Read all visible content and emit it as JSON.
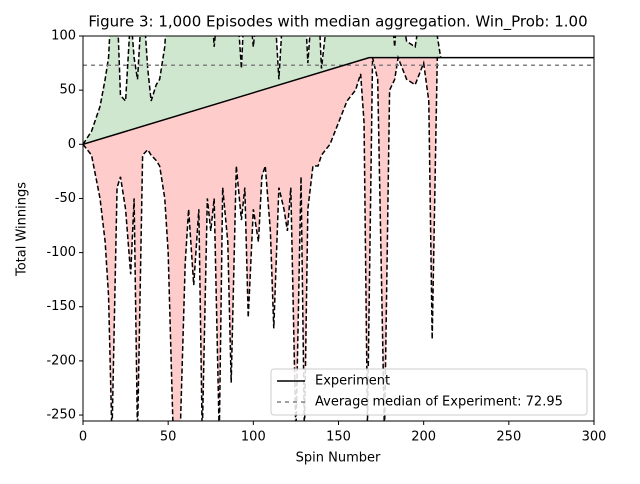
{
  "chart_data": {
    "type": "line",
    "title": "Figure 3: 1,000 Episodes with median aggregation. Win_Prob: 1.00",
    "xlabel": "Spin Number",
    "ylabel": "Total Winnings",
    "xlim": [
      0,
      300
    ],
    "ylim": [
      -255.5,
      100
    ],
    "xticks": [
      0,
      50,
      100,
      150,
      200,
      250,
      300
    ],
    "yticks": [
      100,
      50,
      0,
      -50,
      -100,
      -150,
      -200,
      -250
    ],
    "series": [
      {
        "name": "Experiment",
        "color": "#000000",
        "x": [
          0,
          168,
          300
        ],
        "values": [
          0,
          80,
          80
        ]
      }
    ],
    "bands": {
      "x": [
        0,
        5,
        10,
        13,
        15,
        17,
        20,
        22,
        25,
        28,
        30,
        32,
        35,
        38,
        40,
        43,
        45,
        48,
        50,
        53,
        57,
        60,
        62,
        65,
        68,
        70,
        73,
        75,
        77,
        80,
        82,
        85,
        87,
        90,
        93,
        95,
        97,
        100,
        103,
        105,
        107,
        110,
        112,
        115,
        118,
        120,
        122,
        125,
        128,
        130,
        132,
        135,
        138,
        140,
        145,
        150,
        155,
        160,
        163,
        165,
        167,
        170,
        173,
        177,
        180,
        183,
        185,
        190,
        195,
        200,
        203,
        205,
        208,
        210
      ],
      "upper": [
        0,
        12,
        35,
        60,
        80,
        140,
        130,
        45,
        40,
        120,
        80,
        60,
        140,
        70,
        40,
        55,
        60,
        90,
        140,
        140,
        140,
        140,
        140,
        140,
        100,
        140,
        140,
        140,
        90,
        140,
        140,
        140,
        140,
        140,
        70,
        140,
        140,
        90,
        140,
        140,
        140,
        140,
        140,
        60,
        140,
        140,
        140,
        140,
        140,
        140,
        75,
        140,
        140,
        70,
        140,
        140,
        140,
        140,
        140,
        140,
        140,
        140,
        140,
        140,
        140,
        90,
        140,
        95,
        90,
        140,
        140,
        140,
        100,
        80
      ],
      "lower": [
        0,
        -10,
        -50,
        -90,
        -140,
        -270,
        -40,
        -30,
        -60,
        -120,
        -50,
        -270,
        -10,
        -5,
        -10,
        -15,
        -20,
        -50,
        -100,
        -270,
        -270,
        -110,
        -60,
        -130,
        -60,
        -270,
        -50,
        -80,
        -50,
        -270,
        -40,
        -90,
        -220,
        -20,
        -70,
        -40,
        -160,
        -60,
        -90,
        -30,
        -20,
        -80,
        -170,
        -40,
        -60,
        -80,
        -40,
        -270,
        -30,
        -270,
        -60,
        -20,
        -20,
        -10,
        0,
        20,
        40,
        50,
        65,
        20,
        -260,
        80,
        60,
        -270,
        50,
        60,
        80,
        60,
        55,
        75,
        40,
        -180,
        80,
        80
      ],
      "upper_fill": "#cfe6cf",
      "lower_fill": "#ffcccc",
      "line_color": "#000000"
    },
    "hline": {
      "name": "Average median of Experiment: 72.95",
      "value": 72.95,
      "color": "#808080"
    },
    "legend": "lower right"
  }
}
